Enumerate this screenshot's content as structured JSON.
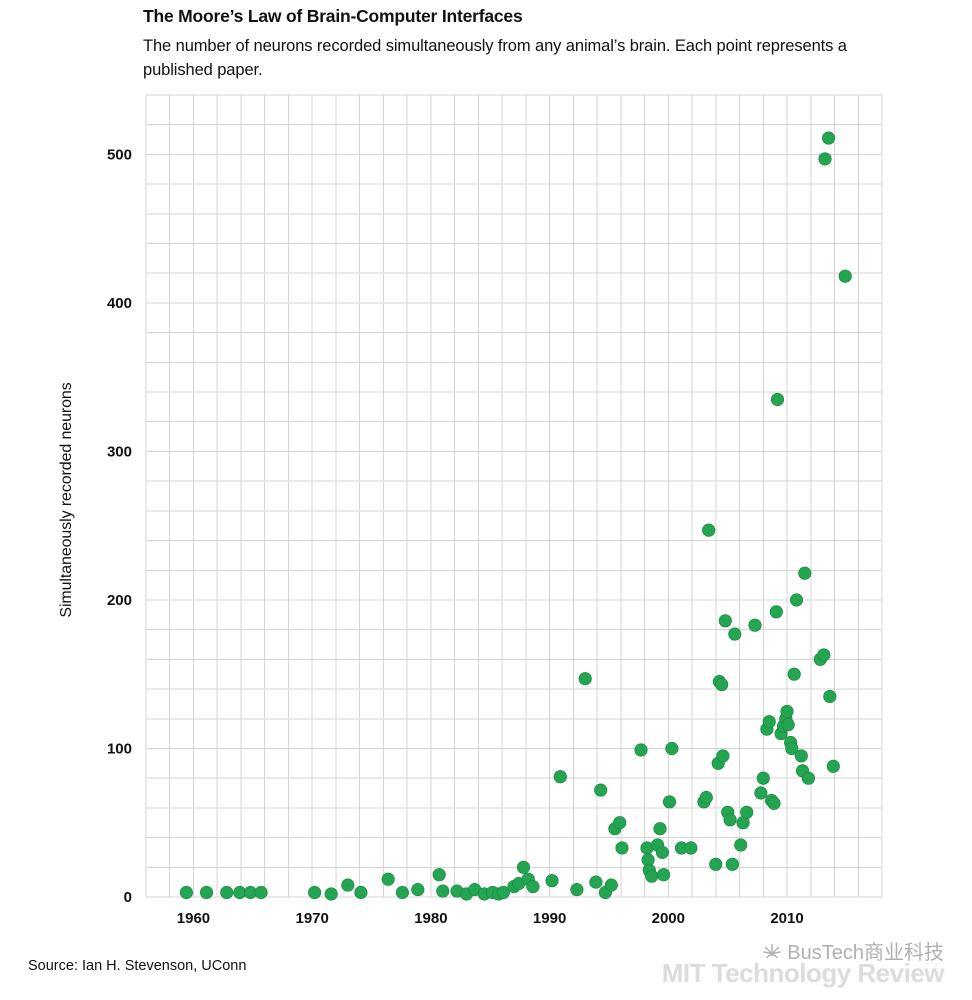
{
  "header": {
    "title": "The Moore’s Law of Brain-Computer Interfaces",
    "subtitle": "The number of neurons recorded simultaneously from any animal’s brain. Each point represents a published paper."
  },
  "chart_data": {
    "type": "scatter",
    "title": "The Moore’s Law of Brain-Computer Interfaces",
    "xlabel": "",
    "ylabel": "Simultaneously recorded neurons",
    "x_range": [
      1956,
      2018
    ],
    "y_range": [
      0,
      540
    ],
    "x_grid_step": 2,
    "y_grid_step": 20,
    "x_ticks": [
      1960,
      1970,
      1980,
      1990,
      2000,
      2010
    ],
    "y_ticks": [
      0,
      100,
      200,
      300,
      400,
      500
    ],
    "grid_on": true,
    "legend": "none",
    "point_color": "#24A552",
    "point_edge_color": "#1C8A43",
    "grid_color": "#d5d5d5",
    "points": [
      [
        1959.4,
        3
      ],
      [
        1961.1,
        3
      ],
      [
        1962.8,
        3
      ],
      [
        1963.9,
        3
      ],
      [
        1964.8,
        3
      ],
      [
        1965.7,
        3
      ],
      [
        1970.2,
        3
      ],
      [
        1971.6,
        2
      ],
      [
        1973.0,
        8
      ],
      [
        1974.1,
        3
      ],
      [
        1976.4,
        12
      ],
      [
        1977.6,
        3
      ],
      [
        1978.9,
        5
      ],
      [
        1980.7,
        15
      ],
      [
        1981.0,
        4
      ],
      [
        1982.2,
        4
      ],
      [
        1983.0,
        2
      ],
      [
        1983.7,
        5
      ],
      [
        1984.5,
        2
      ],
      [
        1985.2,
        3
      ],
      [
        1985.7,
        2
      ],
      [
        1986.1,
        3
      ],
      [
        1987.0,
        7
      ],
      [
        1987.4,
        9
      ],
      [
        1987.8,
        20
      ],
      [
        1988.2,
        12
      ],
      [
        1988.6,
        7
      ],
      [
        1990.2,
        11
      ],
      [
        1990.9,
        81
      ],
      [
        1992.3,
        5
      ],
      [
        1993.0,
        147
      ],
      [
        1993.9,
        10
      ],
      [
        1994.3,
        72
      ],
      [
        1994.7,
        3
      ],
      [
        1995.2,
        8
      ],
      [
        1995.5,
        46
      ],
      [
        1995.9,
        50
      ],
      [
        1996.1,
        33
      ],
      [
        1997.7,
        99
      ],
      [
        1998.2,
        33
      ],
      [
        1998.3,
        25
      ],
      [
        1998.4,
        18
      ],
      [
        1998.6,
        14
      ],
      [
        1999.1,
        35
      ],
      [
        1999.3,
        46
      ],
      [
        1999.5,
        30
      ],
      [
        1999.6,
        15
      ],
      [
        2000.1,
        64
      ],
      [
        2000.3,
        100
      ],
      [
        2001.1,
        33
      ],
      [
        2001.9,
        33
      ],
      [
        2003.0,
        64
      ],
      [
        2003.2,
        67
      ],
      [
        2003.4,
        247
      ],
      [
        2004.0,
        22
      ],
      [
        2004.2,
        90
      ],
      [
        2004.3,
        145
      ],
      [
        2004.5,
        143
      ],
      [
        2004.6,
        95
      ],
      [
        2004.8,
        186
      ],
      [
        2005.0,
        57
      ],
      [
        2005.2,
        52
      ],
      [
        2005.4,
        22
      ],
      [
        2005.6,
        177
      ],
      [
        2006.1,
        35
      ],
      [
        2006.3,
        50
      ],
      [
        2006.6,
        57
      ],
      [
        2007.3,
        183
      ],
      [
        2007.8,
        70
      ],
      [
        2008.0,
        80
      ],
      [
        2008.3,
        113
      ],
      [
        2008.5,
        118
      ],
      [
        2008.7,
        65
      ],
      [
        2008.9,
        63
      ],
      [
        2009.1,
        192
      ],
      [
        2009.2,
        335
      ],
      [
        2009.5,
        110
      ],
      [
        2009.7,
        115
      ],
      [
        2009.9,
        120
      ],
      [
        2010.0,
        125
      ],
      [
        2010.1,
        116
      ],
      [
        2010.3,
        104
      ],
      [
        2010.4,
        100
      ],
      [
        2010.6,
        150
      ],
      [
        2010.8,
        200
      ],
      [
        2011.2,
        95
      ],
      [
        2011.3,
        85
      ],
      [
        2011.5,
        218
      ],
      [
        2011.8,
        80
      ],
      [
        2012.8,
        160
      ],
      [
        2013.1,
        163
      ],
      [
        2013.2,
        497
      ],
      [
        2013.5,
        511
      ],
      [
        2013.6,
        135
      ],
      [
        2013.9,
        88
      ],
      [
        2014.9,
        418
      ]
    ]
  },
  "footer": {
    "source": "Source: Ian H. Stevenson, UConn"
  },
  "watermark": {
    "bustech": "BusTech商业科技",
    "mit": "MIT Technology Review"
  }
}
